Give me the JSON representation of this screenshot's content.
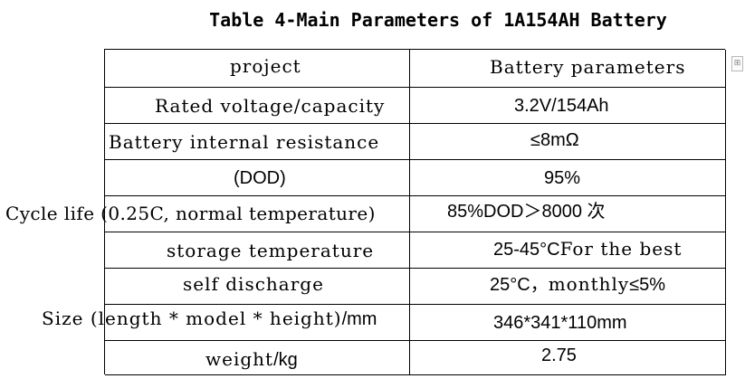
{
  "title": "Table 4-Main Parameters of 1A154AH Battery",
  "header": {
    "col1": "project",
    "col2": "Battery parameters"
  },
  "rows": [
    {
      "param": "Rated voltage/capacity",
      "value": "3.2V/154Ah"
    },
    {
      "param": "Battery internal resistance",
      "value": "≤8mΩ"
    },
    {
      "param": "(DOD)",
      "value": "95%"
    },
    {
      "param": "Cycle life (0.25C, normal temperature)",
      "value": "85%DOD＞8000 次"
    },
    {
      "param": "storage temperature",
      "value_a": "25-45°C",
      "value_b": "For the best"
    },
    {
      "param": "self discharge",
      "value_a": "25°C，",
      "value_b": "monthly",
      "value_c": "≤5%"
    },
    {
      "param_a": "Size (length * model * height)",
      "param_b": "/mm",
      "value": "346*341*110mm"
    },
    {
      "param_a": "weight",
      "param_b": "/kg",
      "value": "2.75"
    }
  ],
  "side_marker": "⊞"
}
